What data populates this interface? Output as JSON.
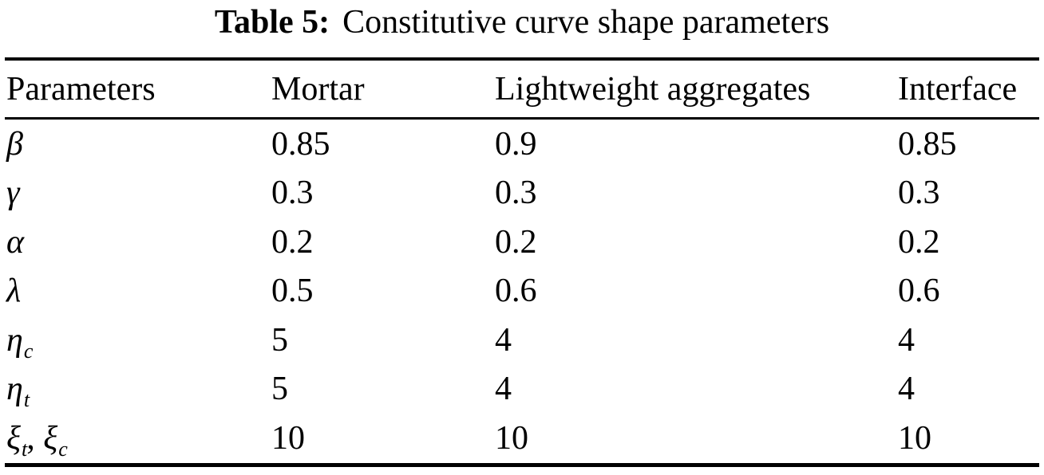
{
  "title": {
    "prefix": "Table 5:",
    "text": "Constitutive curve shape parameters"
  },
  "table": {
    "columns": [
      "Parameters",
      "Mortar",
      "Lightweight aggregates",
      "Interface"
    ],
    "rows": [
      {
        "sym1": "β",
        "sub1": "",
        "sep": "",
        "sym2": "",
        "sub2": "",
        "mortar": "0.85",
        "lightweight": "0.9",
        "interface": "0.85"
      },
      {
        "sym1": "γ",
        "sub1": "",
        "sep": "",
        "sym2": "",
        "sub2": "",
        "mortar": "0.3",
        "lightweight": "0.3",
        "interface": "0.3"
      },
      {
        "sym1": "α",
        "sub1": "",
        "sep": "",
        "sym2": "",
        "sub2": "",
        "mortar": "0.2",
        "lightweight": "0.2",
        "interface": "0.2"
      },
      {
        "sym1": "λ",
        "sub1": "",
        "sep": "",
        "sym2": "",
        "sub2": "",
        "mortar": "0.5",
        "lightweight": "0.6",
        "interface": "0.6"
      },
      {
        "sym1": "η",
        "sub1": "c",
        "sep": "",
        "sym2": "",
        "sub2": "",
        "mortar": "5",
        "lightweight": "4",
        "interface": "4"
      },
      {
        "sym1": "η",
        "sub1": "t",
        "sep": "",
        "sym2": "",
        "sub2": "",
        "mortar": "5",
        "lightweight": "4",
        "interface": "4"
      },
      {
        "sym1": "ξ",
        "sub1": "t",
        "sep": ", ",
        "sym2": "ξ",
        "sub2": "c",
        "mortar": "10",
        "lightweight": "10",
        "interface": "10"
      }
    ]
  }
}
